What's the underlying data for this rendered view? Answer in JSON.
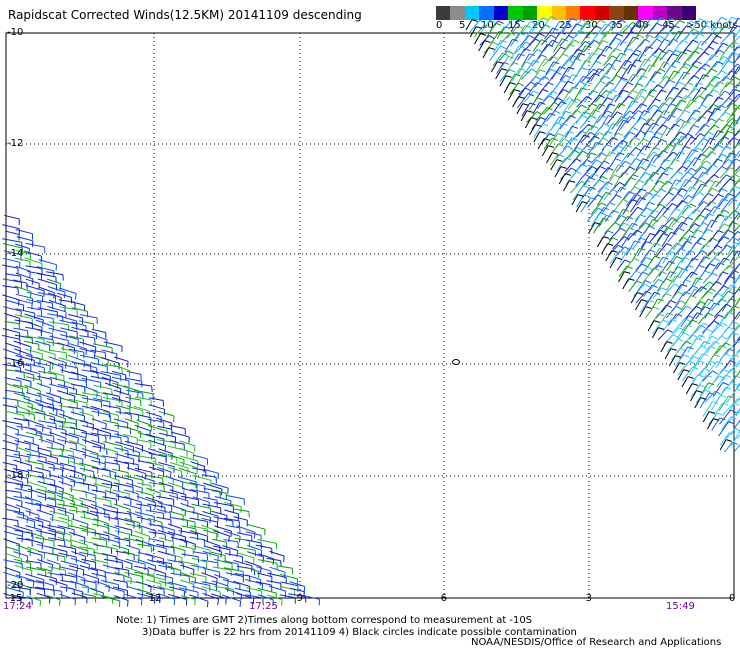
{
  "title": "Rapidscat Corrected Winds(12.5KM) 20141109 descending",
  "legend": {
    "colors": [
      "#3c3c3c",
      "#8c8c8c",
      "#00c8ff",
      "#0070ff",
      "#0000d0",
      "#00c800",
      "#00a000",
      "#ffff00",
      "#ffc000",
      "#ff8000",
      "#ff0000",
      "#d00000",
      "#8b4513",
      "#663300",
      "#ff00ff",
      "#c000c0",
      "#6a0a8a",
      "#3a0070"
    ],
    "ticks": [
      "0",
      "5",
      "10",
      "15",
      "20",
      "25",
      "30",
      "35",
      "40",
      "45",
      ">50 knots"
    ]
  },
  "axes": {
    "y_labels": [
      "-10",
      "-12",
      "-14",
      "-16",
      "-18",
      "-20"
    ],
    "x_labels": [
      "-15",
      "-12",
      "-9",
      "-6",
      "-3",
      "0"
    ]
  },
  "times": [
    "17:24",
    "17:25",
    "15:49"
  ],
  "notes": [
    "Note: 1) Times are GMT 2)Times along bottom correspond to measurement at -10S",
    "3)Data buffer is 22 hrs from 20141109 4) Black circles indicate possible contamination"
  ],
  "credit": "NOAA/NESDIS/Office of Research and Applications"
}
